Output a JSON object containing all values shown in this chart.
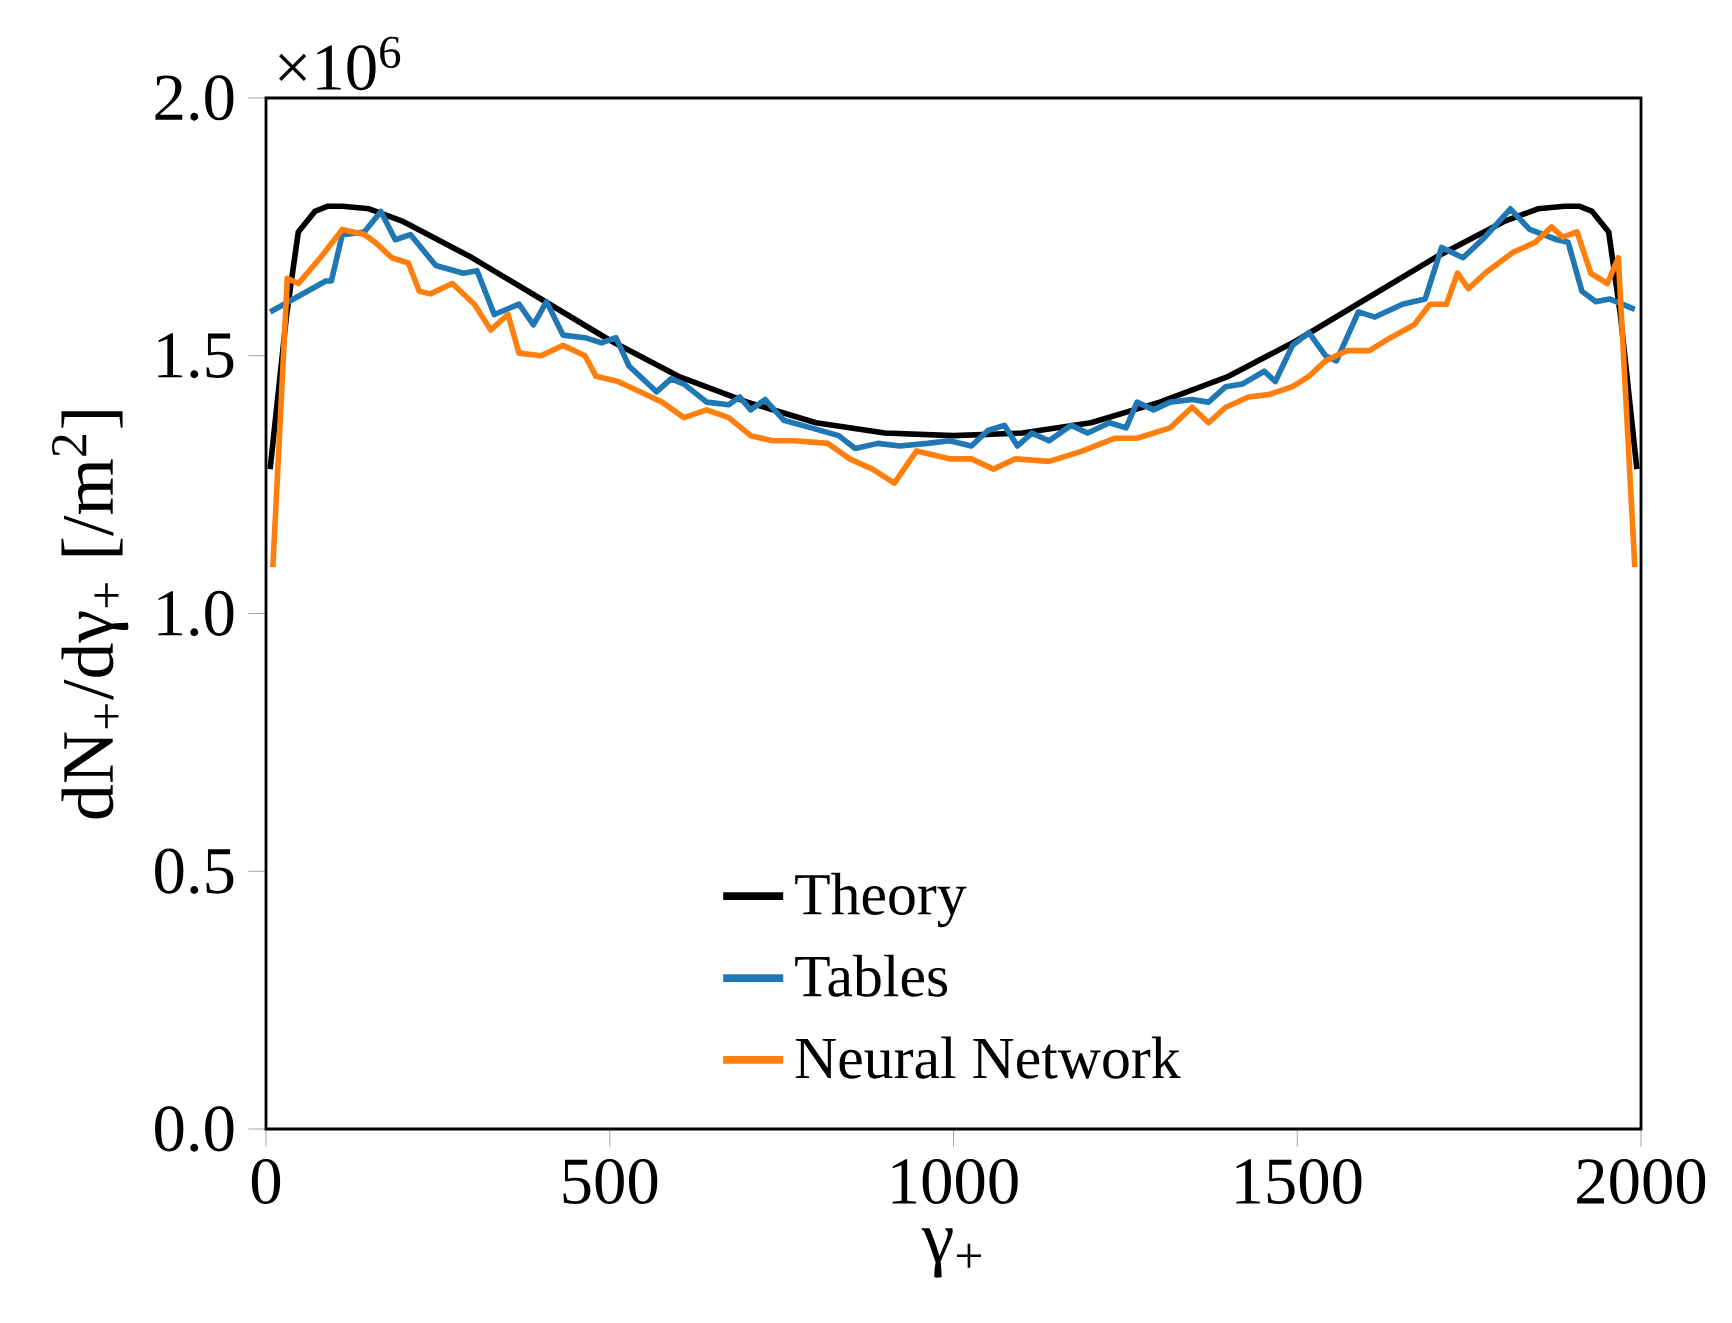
{
  "chart_data": {
    "type": "line",
    "xlabel": "γ$_{+}$",
    "ylabel": "dN$_{+}$/dγ$_{+}$ [/m$^{2}$]",
    "annotations": [
      "×10$^{6}$"
    ],
    "xlim": [
      0,
      2000
    ],
    "ylim": [
      0,
      2.0
    ],
    "xticks": [
      0,
      500,
      1000,
      1500,
      2000
    ],
    "yticks": [
      {
        "value": 0,
        "label": "0.0"
      },
      {
        "value": 0.5,
        "label": "0.5"
      },
      {
        "value": 1.0,
        "label": "1.0"
      },
      {
        "value": 1.5,
        "label": "1.5"
      },
      {
        "value": 2.0,
        "label": "2.0"
      }
    ],
    "legend": "bottom",
    "marker": "none",
    "line_style": "solid",
    "series": [
      {
        "name": "Theory",
        "color": "#000000",
        "x": [
          6,
          30,
          47,
          71,
          90,
          111,
          150,
          200,
          300,
          400,
          500,
          600,
          700,
          800,
          900,
          1000,
          1100,
          1200,
          1300,
          1400,
          1500,
          1600,
          1700,
          1800,
          1850,
          1889,
          1910,
          1929,
          1953,
          1970,
          1994
        ],
        "values": [
          1.28,
          1.58,
          1.74,
          1.78,
          1.79,
          1.79,
          1.785,
          1.76,
          1.69,
          1.61,
          1.53,
          1.46,
          1.41,
          1.37,
          1.35,
          1.345,
          1.35,
          1.37,
          1.41,
          1.46,
          1.53,
          1.61,
          1.69,
          1.76,
          1.785,
          1.79,
          1.79,
          1.78,
          1.74,
          1.58,
          1.28
        ]
      },
      {
        "name": "Tables",
        "color": "#1f77b4",
        "x": [
          6,
          87,
          95,
          111,
          143,
          167,
          188,
          210,
          247,
          287,
          307,
          332,
          368,
          389,
          408,
          432,
          464,
          488,
          509,
          528,
          568,
          589,
          608,
          641,
          673,
          689,
          705,
          726,
          753,
          793,
          833,
          857,
          890,
          922,
          962,
          994,
          1026,
          1050,
          1074,
          1093,
          1114,
          1139,
          1171,
          1195,
          1227,
          1251,
          1267,
          1291,
          1315,
          1347,
          1371,
          1396,
          1420,
          1452,
          1468,
          1493,
          1517,
          1541,
          1557,
          1589,
          1613,
          1653,
          1686,
          1710,
          1741,
          1773,
          1810,
          1838,
          1878,
          1894,
          1914,
          1934,
          1955,
          1991
        ],
        "values": [
          1.585,
          1.645,
          1.645,
          1.735,
          1.74,
          1.78,
          1.725,
          1.735,
          1.675,
          1.66,
          1.665,
          1.58,
          1.6,
          1.56,
          1.605,
          1.54,
          1.535,
          1.525,
          1.535,
          1.48,
          1.43,
          1.455,
          1.445,
          1.41,
          1.405,
          1.42,
          1.395,
          1.415,
          1.375,
          1.36,
          1.345,
          1.32,
          1.33,
          1.325,
          1.33,
          1.335,
          1.325,
          1.355,
          1.365,
          1.325,
          1.35,
          1.335,
          1.365,
          1.35,
          1.37,
          1.36,
          1.41,
          1.395,
          1.41,
          1.415,
          1.41,
          1.44,
          1.445,
          1.47,
          1.45,
          1.52,
          1.545,
          1.5,
          1.49,
          1.585,
          1.575,
          1.6,
          1.61,
          1.71,
          1.69,
          1.73,
          1.785,
          1.745,
          1.725,
          1.72,
          1.625,
          1.605,
          1.61,
          1.59
        ]
      },
      {
        "name": "Neural Network",
        "color": "#ff7f0e",
        "x": [
          10,
          31,
          47,
          79,
          111,
          143,
          159,
          183,
          207,
          223,
          239,
          271,
          303,
          327,
          352,
          368,
          400,
          432,
          464,
          480,
          512,
          544,
          576,
          608,
          641,
          673,
          705,
          737,
          769,
          817,
          849,
          882,
          914,
          946,
          994,
          1026,
          1058,
          1090,
          1139,
          1187,
          1235,
          1267,
          1315,
          1347,
          1371,
          1396,
          1429,
          1460,
          1493,
          1517,
          1541,
          1573,
          1605,
          1629,
          1670,
          1693,
          1717,
          1733,
          1749,
          1773,
          1813,
          1846,
          1870,
          1886,
          1907,
          1927,
          1951,
          1967,
          1991
        ],
        "values": [
          1.09,
          1.65,
          1.64,
          1.69,
          1.745,
          1.735,
          1.72,
          1.69,
          1.68,
          1.625,
          1.62,
          1.64,
          1.6,
          1.55,
          1.58,
          1.505,
          1.5,
          1.52,
          1.5,
          1.46,
          1.45,
          1.43,
          1.41,
          1.38,
          1.395,
          1.38,
          1.345,
          1.335,
          1.335,
          1.33,
          1.3,
          1.28,
          1.253,
          1.315,
          1.3,
          1.3,
          1.28,
          1.3,
          1.295,
          1.315,
          1.34,
          1.34,
          1.36,
          1.4,
          1.37,
          1.4,
          1.42,
          1.425,
          1.44,
          1.46,
          1.49,
          1.51,
          1.51,
          1.53,
          1.56,
          1.6,
          1.6,
          1.66,
          1.63,
          1.66,
          1.7,
          1.72,
          1.75,
          1.73,
          1.74,
          1.66,
          1.64,
          1.69,
          1.09
        ]
      }
    ]
  }
}
